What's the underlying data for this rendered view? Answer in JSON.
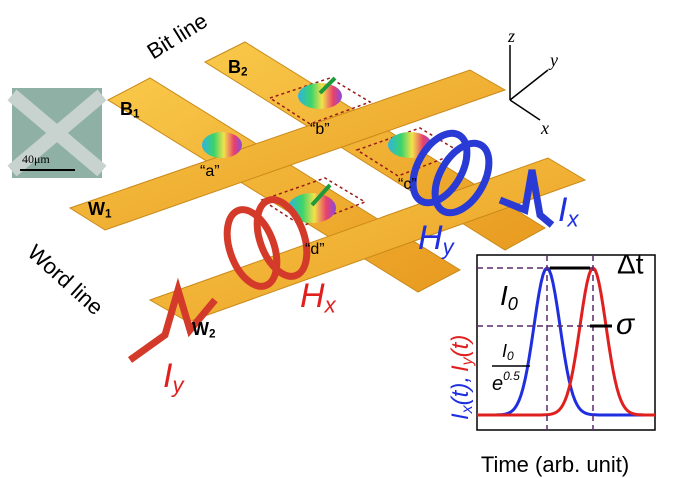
{
  "labels": {
    "bit_line": "Bit line",
    "word_line": "Word line",
    "b1": {
      "main": "B",
      "sub": "1"
    },
    "b2": {
      "main": "B",
      "sub": "2"
    },
    "w1": {
      "main": "W",
      "sub": "1"
    },
    "w2": {
      "main": "W",
      "sub": "2"
    },
    "scale_bar": "40μm",
    "cells": [
      "“a”",
      "“b”",
      "“c”",
      "“d”"
    ],
    "axes": [
      "z",
      "y",
      "x"
    ],
    "hy": {
      "main": "H",
      "sub": "y"
    },
    "hx": {
      "main": "H",
      "sub": "x"
    },
    "ix": {
      "main": "I",
      "sub": "x"
    },
    "iy": {
      "main": "I",
      "sub": "y"
    }
  },
  "inset": {
    "delta_t": "Δt",
    "i0": {
      "main": "I",
      "sub": "0"
    },
    "sigma": "σ",
    "i0_frac": {
      "num": "I",
      "num_sub": "0",
      "den": "e",
      "den_sup": "0.5"
    },
    "y_label": {
      "first": "I",
      "first_sub": "x",
      "first_rest": "(t),",
      "second": "I",
      "second_sub": "y",
      "second_rest": "(t)"
    },
    "x_label": "Time (arb. unit)"
  }
}
